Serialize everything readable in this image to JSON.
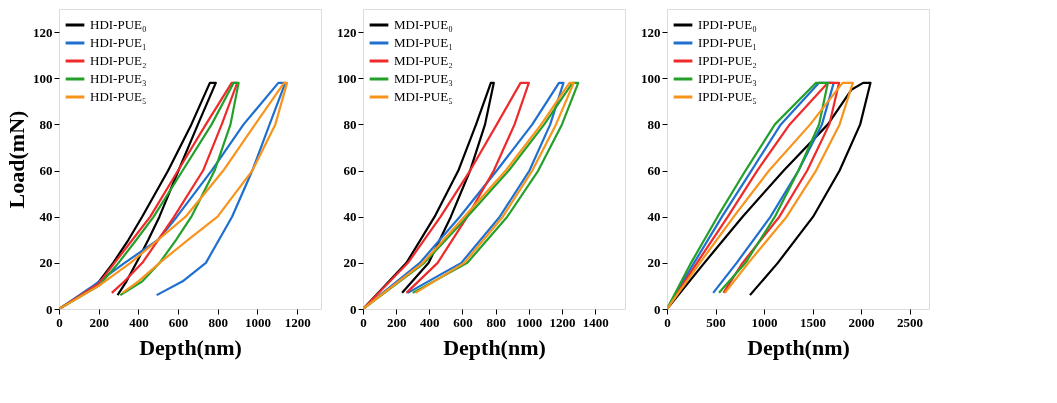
{
  "chart_data": [
    {
      "type": "line",
      "xlabel": "Depth(nm)",
      "ylabel": "Load(mN)",
      "xlim": [
        0,
        1320
      ],
      "ylim": [
        0,
        130
      ],
      "xticks": [
        0,
        200,
        400,
        600,
        800,
        1000,
        1200
      ],
      "yticks": [
        0,
        20,
        40,
        60,
        80,
        100,
        120
      ],
      "legend": "top left",
      "grid": false,
      "series": [
        {
          "name": "HDI-PUE₀",
          "color": "#000000",
          "x": [
            0,
            185,
            273,
            350,
            419,
            550,
            667,
            760,
            790,
            700,
            602,
            506,
            450,
            390,
            340,
            295
          ],
          "values": [
            0,
            10,
            20,
            30,
            40,
            60,
            80,
            98,
            98,
            80,
            60,
            40,
            30,
            20,
            12,
            6
          ]
        },
        {
          "name": "HDI-PUE₁",
          "color": "#1f6fd0",
          "x": [
            0,
            171,
            331,
            500,
            594,
            769,
            930,
            1105,
            1140,
            1061,
            974,
            872,
            740,
            623,
            492
          ],
          "values": [
            0,
            10,
            20,
            30,
            40,
            60,
            80,
            98,
            98,
            80,
            60,
            40,
            20,
            12,
            6
          ]
        },
        {
          "name": "HDI-PUE₂",
          "color": "#ee2a2a",
          "x": [
            0,
            200,
            280,
            370,
            460,
            600,
            740,
            870,
            898,
            820,
            726,
            580,
            500,
            420,
            330,
            266
          ],
          "values": [
            0,
            11,
            20,
            30,
            40,
            60,
            80,
            98,
            98,
            80,
            60,
            40,
            30,
            20,
            12,
            7
          ]
        },
        {
          "name": "HDI-PUE₃",
          "color": "#22a02a",
          "x": [
            0,
            200,
            300,
            390,
            477,
            623,
            769,
            880,
            905,
            864,
            784,
            667,
            590,
            507,
            420,
            309
          ],
          "values": [
            0,
            10,
            20,
            30,
            40,
            60,
            80,
            98,
            98,
            80,
            60,
            40,
            30,
            20,
            12,
            6
          ]
        },
        {
          "name": "HDI-PUE₅",
          "color": "#f7941d",
          "x": [
            0,
            200,
            360,
            500,
            638,
            828,
            988,
            1134,
            1149,
            1090,
            974,
            799,
            650,
            507,
            400,
            320
          ],
          "values": [
            0,
            10,
            20,
            30,
            40,
            60,
            80,
            98,
            98,
            80,
            60,
            40,
            30,
            20,
            12,
            7
          ]
        }
      ]
    },
    {
      "type": "line",
      "xlabel": "Depth(nm)",
      "xlim": [
        0,
        1580
      ],
      "ylim": [
        0,
        130
      ],
      "xticks": [
        0,
        200,
        400,
        600,
        800,
        1000,
        1200,
        1400
      ],
      "yticks": [
        0,
        20,
        40,
        60,
        80,
        100,
        120
      ],
      "legend": "top left",
      "grid": false,
      "series": [
        {
          "name": "MDI-PUE₀",
          "color": "#000000",
          "x": [
            0,
            262,
            432,
            575,
            682,
            771,
            789,
            736,
            646,
            530,
            396,
            236
          ],
          "values": [
            0,
            20,
            40,
            60,
            80,
            98,
            98,
            80,
            60,
            40,
            20,
            7
          ]
        },
        {
          "name": "MDI-PUE₁",
          "color": "#1f6fd0",
          "x": [
            0,
            343,
            584,
            807,
            1021,
            1182,
            1209,
            1129,
            1004,
            825,
            593,
            270
          ],
          "values": [
            0,
            20,
            40,
            60,
            80,
            98,
            98,
            80,
            60,
            40,
            20,
            7
          ]
        },
        {
          "name": "MDI-PUE₂",
          "color": "#ee2a2a",
          "x": [
            0,
            271,
            468,
            646,
            807,
            950,
            1000,
            914,
            789,
            629,
            450,
            262
          ],
          "values": [
            0,
            20,
            40,
            60,
            80,
            98,
            98,
            80,
            60,
            40,
            20,
            7
          ]
        },
        {
          "name": "MDI-PUE₃",
          "color": "#22a02a",
          "x": [
            0,
            370,
            629,
            879,
            1093,
            1263,
            1298,
            1200,
            1057,
            870,
            629,
            300
          ],
          "values": [
            0,
            20,
            40,
            60,
            80,
            98,
            98,
            80,
            60,
            40,
            20,
            7
          ]
        },
        {
          "name": "MDI-PUE₅",
          "color": "#f7941d",
          "x": [
            0,
            361,
            611,
            861,
            1075,
            1245,
            1271,
            1164,
            1021,
            843,
            611,
            316
          ],
          "values": [
            0,
            20,
            40,
            60,
            80,
            98,
            98,
            80,
            60,
            40,
            20,
            7
          ]
        }
      ]
    },
    {
      "type": "line",
      "xlabel": "Depth(nm)",
      "xlim": [
        0,
        2700
      ],
      "ylim": [
        0,
        130
      ],
      "xticks": [
        0,
        500,
        1000,
        1500,
        2000,
        2500
      ],
      "yticks": [
        0,
        20,
        40,
        60,
        80,
        100,
        120
      ],
      "legend": "top left",
      "grid": false,
      "series": [
        {
          "name": "IPDI-PUE₀",
          "color": "#000000",
          "x": [
            0,
            385,
            779,
            1203,
            1658,
            1900,
            2021,
            2097,
            1991,
            1779,
            1506,
            1142,
            855
          ],
          "values": [
            0,
            20,
            40,
            60,
            80,
            95,
            98,
            98,
            80,
            60,
            40,
            20,
            6
          ]
        },
        {
          "name": "IPDI-PUE₁",
          "color": "#1f6fd0",
          "x": [
            0,
            279,
            567,
            870,
            1173,
            1567,
            1718,
            1597,
            1355,
            1067,
            718,
            476
          ],
          "values": [
            0,
            20,
            40,
            60,
            80,
            98,
            98,
            80,
            60,
            40,
            20,
            7
          ]
        },
        {
          "name": "IPDI-PUE₂",
          "color": "#ee2a2a",
          "x": [
            0,
            309,
            627,
            930,
            1264,
            1658,
            1773,
            1673,
            1445,
            1158,
            779,
            582
          ],
          "values": [
            0,
            20,
            40,
            60,
            80,
            98,
            98,
            80,
            60,
            40,
            20,
            7
          ]
        },
        {
          "name": "IPDI-PUE₃",
          "color": "#22a02a",
          "x": [
            0,
            248,
            521,
            809,
            1112,
            1536,
            1658,
            1567,
            1355,
            1112,
            809,
            536
          ],
          "values": [
            0,
            20,
            40,
            60,
            80,
            98,
            98,
            80,
            60,
            40,
            20,
            7
          ]
        },
        {
          "name": "IPDI-PUE₅",
          "color": "#f7941d",
          "x": [
            0,
            339,
            688,
            1052,
            1476,
            1809,
            1915,
            1779,
            1536,
            1233,
            839,
            597
          ],
          "values": [
            0,
            20,
            40,
            60,
            80,
            98,
            98,
            80,
            60,
            40,
            20,
            7
          ]
        }
      ]
    }
  ]
}
